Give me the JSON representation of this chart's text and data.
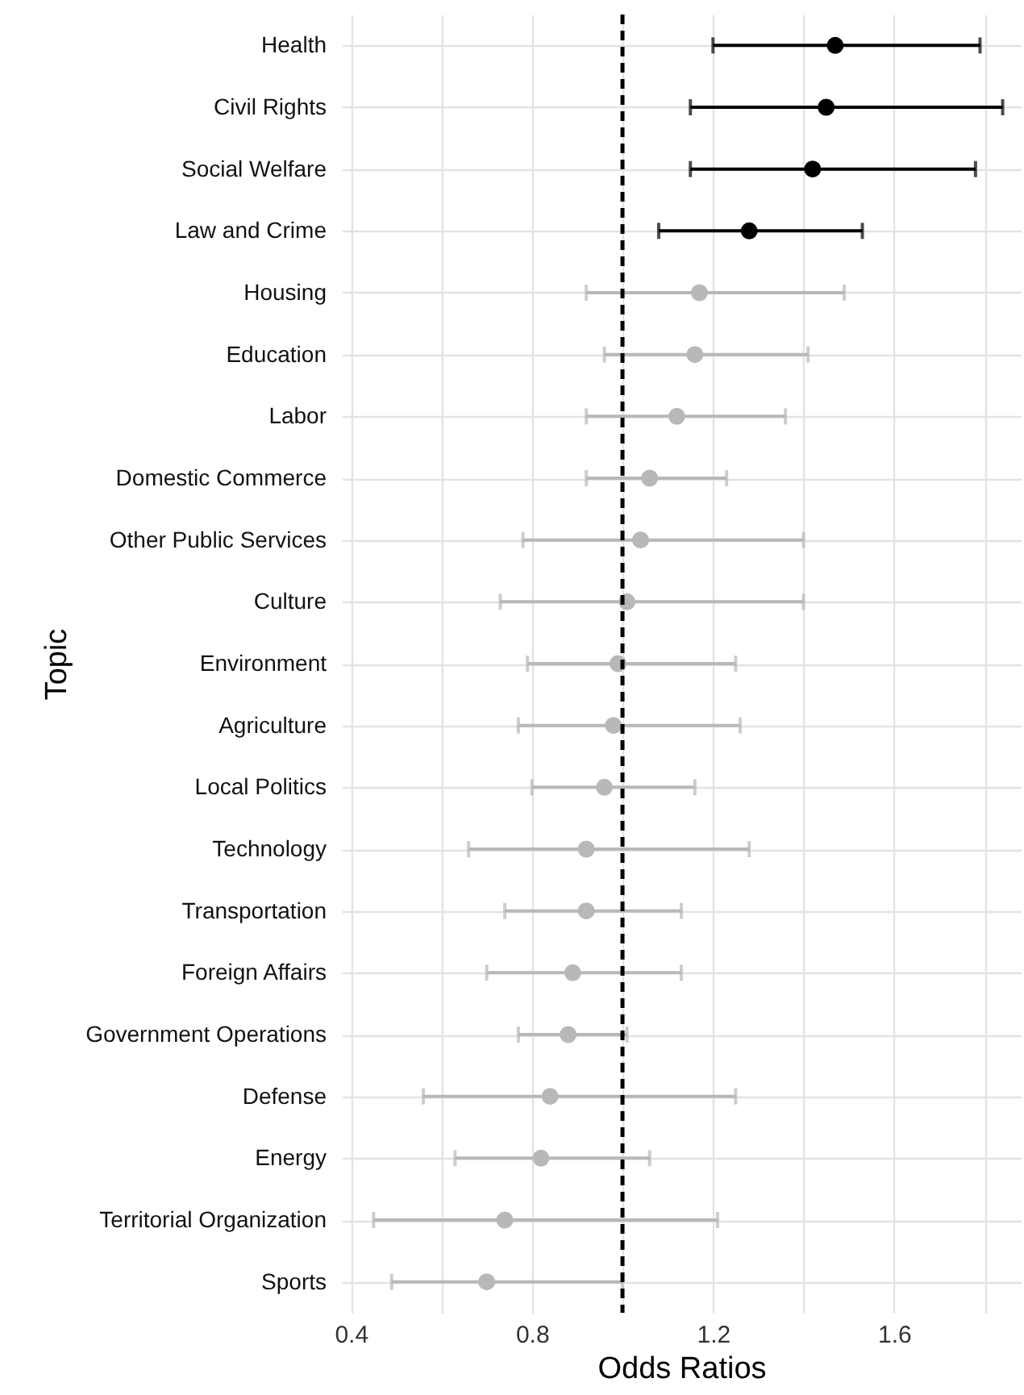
{
  "chart_data": {
    "type": "scatter",
    "orientation": "horizontal",
    "xlabel": "Odds Ratios",
    "ylabel": "Topic",
    "categories": [
      "Health",
      "Civil Rights",
      "Social Welfare",
      "Law and Crime",
      "Housing",
      "Education",
      "Labor",
      "Domestic Commerce",
      "Other Public Services",
      "Culture",
      "Environment",
      "Agriculture",
      "Local Politics",
      "Technology",
      "Transportation",
      "Foreign Affairs",
      "Government Operations",
      "Defense",
      "Energy",
      "Territorial Organization",
      "Sports"
    ],
    "series": [
      {
        "color": "#000000",
        "values": [
          1.47,
          1.45,
          1.42,
          1.28,
          null,
          null,
          null,
          null,
          null,
          null,
          null,
          null,
          null,
          null,
          null,
          null,
          null,
          null,
          null,
          null,
          null
        ],
        "errors": [
          [
            1.2,
            1.79
          ],
          [
            1.15,
            1.84
          ],
          [
            1.15,
            1.78
          ],
          [
            1.08,
            1.53
          ],
          null,
          null,
          null,
          null,
          null,
          null,
          null,
          null,
          null,
          null,
          null,
          null,
          null,
          null,
          null,
          null,
          null
        ]
      },
      {
        "color": "#b8b8b8",
        "values": [
          null,
          null,
          null,
          null,
          1.17,
          1.16,
          1.12,
          1.06,
          1.04,
          1.01,
          0.99,
          0.98,
          0.96,
          0.92,
          0.92,
          0.89,
          0.88,
          0.84,
          0.82,
          0.74,
          0.7
        ],
        "errors": [
          null,
          null,
          null,
          null,
          [
            0.92,
            1.49
          ],
          [
            0.96,
            1.41
          ],
          [
            0.92,
            1.36
          ],
          [
            0.92,
            1.23
          ],
          [
            0.78,
            1.4
          ],
          [
            0.73,
            1.4
          ],
          [
            0.79,
            1.25
          ],
          [
            0.77,
            1.26
          ],
          [
            0.8,
            1.16
          ],
          [
            0.66,
            1.28
          ],
          [
            0.74,
            1.13
          ],
          [
            0.7,
            1.13
          ],
          [
            0.77,
            1.01
          ],
          [
            0.56,
            1.25
          ],
          [
            0.63,
            1.06
          ],
          [
            0.45,
            1.21
          ],
          [
            0.49,
            1.0
          ]
        ]
      }
    ],
    "xlim": [
      0.38,
      1.88
    ],
    "xticks": [
      0.4,
      {
        "value": 0.6,
        "label": null
      },
      0.8,
      {
        "value": 1.0,
        "label": null
      },
      1.2,
      {
        "value": 1.4,
        "label": null
      },
      1.6,
      {
        "value": 1.8,
        "label": null
      }
    ],
    "ref_lines": [
      {
        "axis": "x",
        "value": 1.0,
        "color": "#000000",
        "line_style": "dashed"
      }
    ],
    "grid": true,
    "marker": "circle"
  }
}
